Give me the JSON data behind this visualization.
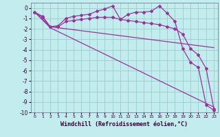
{
  "title": "",
  "xlabel": "Windchill (Refroidissement éolien,°C)",
  "bg_color": "#c2ecee",
  "grid_color": "#99cccc",
  "line_color": "#993399",
  "xlim": [
    -0.5,
    23.5
  ],
  "ylim": [
    -10,
    0.5
  ],
  "xticks": [
    0,
    1,
    2,
    3,
    4,
    5,
    6,
    7,
    8,
    9,
    10,
    11,
    12,
    13,
    14,
    15,
    16,
    17,
    18,
    19,
    20,
    21,
    22,
    23
  ],
  "yticks": [
    0,
    -1,
    -2,
    -3,
    -4,
    -5,
    -6,
    -7,
    -8,
    -9,
    -10
  ],
  "line1_x": [
    0,
    1,
    2,
    3,
    4,
    5,
    6,
    7,
    8,
    9,
    10,
    11,
    12,
    13,
    14,
    15,
    16,
    17,
    18,
    19,
    20,
    21,
    22,
    23
  ],
  "line1_y": [
    -0.4,
    -0.8,
    -1.8,
    -1.7,
    -1.0,
    -0.8,
    -0.7,
    -0.6,
    -0.3,
    -0.1,
    0.2,
    -1.1,
    -0.6,
    -0.4,
    -0.4,
    -0.3,
    0.2,
    -0.5,
    -1.3,
    -3.9,
    -5.2,
    -5.7,
    -9.3,
    -9.8
  ],
  "line2_x": [
    0,
    1,
    2,
    3,
    4,
    5,
    6,
    7,
    8,
    9,
    10,
    11,
    12,
    13,
    14,
    15,
    16,
    17,
    18,
    19,
    20,
    21,
    22,
    23
  ],
  "line2_y": [
    -0.4,
    -0.9,
    -1.8,
    -1.8,
    -1.3,
    -1.2,
    -1.1,
    -1.0,
    -0.9,
    -0.9,
    -0.9,
    -1.1,
    -1.2,
    -1.3,
    -1.4,
    -1.5,
    -1.6,
    -1.8,
    -2.0,
    -2.5,
    -3.9,
    -4.5,
    -5.8,
    -9.7
  ],
  "line3_x": [
    0,
    2,
    23
  ],
  "line3_y": [
    -0.4,
    -1.8,
    -3.8
  ],
  "line4_x": [
    0,
    2,
    23
  ],
  "line4_y": [
    -0.4,
    -1.9,
    -9.5
  ],
  "marker": "D",
  "markersize": 2.0,
  "linewidth": 0.9
}
